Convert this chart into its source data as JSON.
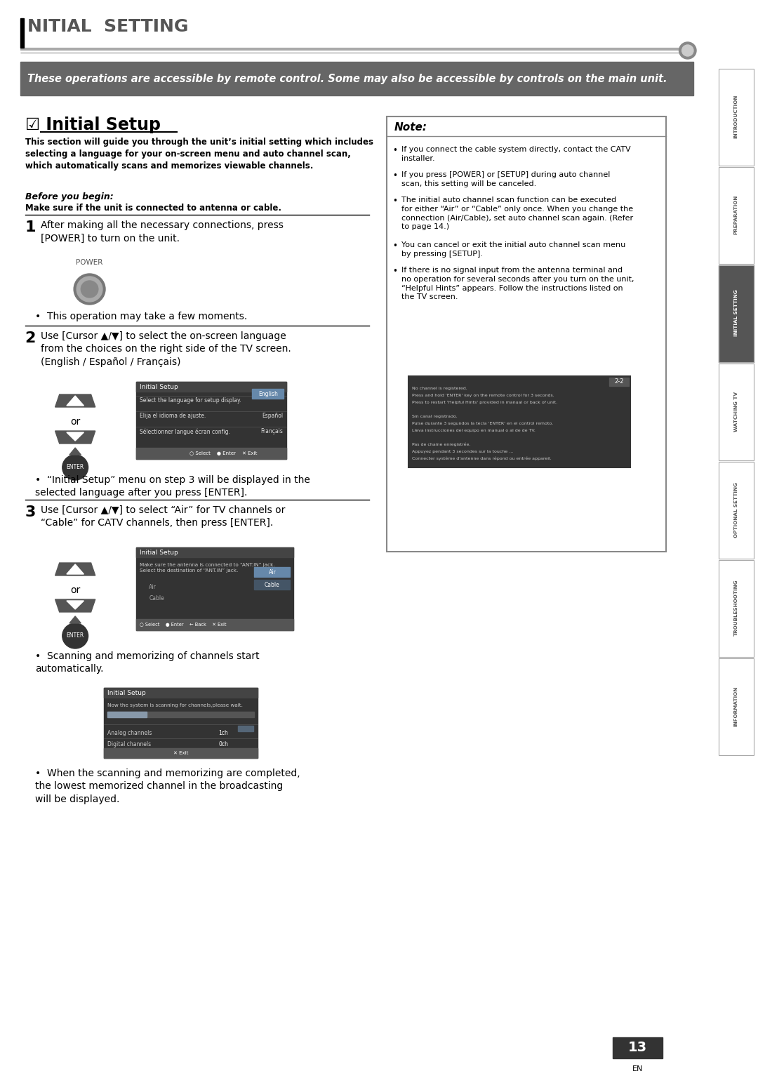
{
  "page_bg": "#ffffff",
  "title_bar_text": "NITIAL  SETTING",
  "title_bar_color": "#888888",
  "operations_banner_bg": "#666666",
  "operations_banner_text": "These operations are accessible by remote control. Some may also be accessible by controls on the main unit.",
  "operations_banner_text_color": "#ffffff",
  "section_title": "☑ Initial Setup",
  "intro_text": "This section will guide you through the unit’s initial setting which includes\nselecting a language for your on-screen menu and auto channel scan,\nwhich automatically scans and memorizes viewable channels.",
  "before_text": "Before you begin:",
  "before_body": "Make sure if the unit is connected to antenna or cable.",
  "step1_text": "After making all the necessary connections, press\n[POWER] to turn on the unit.",
  "step1_bullet": "This operation may take a few moments.",
  "step2_text": "Use [Cursor ▲/▼] to select the on-screen language\nfrom the choices on the right side of the TV screen.\n(English / Español / Français)",
  "step2_bullet": "“Initial Setup” menu on step 3 will be displayed in the\nselected language after you press [ENTER].",
  "step3_text": "Use [Cursor ▲/▼] to select “Air” for TV channels or\n“Cable” for CATV channels, then press [ENTER].",
  "step3_bullet1": "Scanning and memorizing of channels start\nautomatically.",
  "step3_bullet2": "When the scanning and memorizing are completed,\nthe lowest memorized channel in the broadcasting\nwill be displayed.",
  "note_title": "Note:",
  "note_lines": [
    "If you connect the cable system directly, contact the CATV\ninstaller.",
    "If you press [POWER] or [SETUP] during auto channel\nscan, this setting will be canceled.",
    "The initial auto channel scan function can be executed\nfor either “Air” or “Cable” only once. When you change the\nconnection (Air/Cable), set auto channel scan again. (Refer\nto page 14.)",
    "You can cancel or exit the initial auto channel scan menu\nby pressing [SETUP].",
    "If there is no signal input from the antenna terminal and\nno operation for several seconds after you turn on the unit,\n“Helpful Hints” appears. Follow the instructions listed on\nthe TV screen."
  ],
  "sidebar_labels": [
    "INTRODUCTION",
    "PREPARATION",
    "INITIAL SETTING",
    "WATCHING TV",
    "OPTIONAL SETTING",
    "TROUBLESHOOTING",
    "INFORMATION"
  ],
  "sidebar_active": "INITIAL SETTING",
  "sidebar_active_bg": "#555555",
  "sidebar_inactive_bg": "#ffffff",
  "page_number": "13",
  "footer_en": "EN"
}
